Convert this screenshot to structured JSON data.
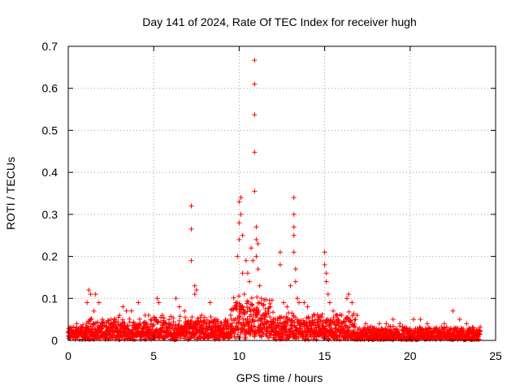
{
  "chart_data": {
    "type": "scatter",
    "title": "Day 141 of 2024, Rate Of TEC Index for receiver hugh",
    "xlabel": "GPS time / hours",
    "ylabel": "ROTI / TECUs",
    "xlim": [
      0,
      25
    ],
    "ylim": [
      0,
      0.7
    ],
    "x_ticks": [
      0,
      5,
      10,
      15,
      20,
      25
    ],
    "x_tick_labels": [
      "0",
      "5",
      "10",
      "15",
      "20",
      "25"
    ],
    "y_ticks": [
      0,
      0.1,
      0.2,
      0.3,
      0.4,
      0.5,
      0.6,
      0.7
    ],
    "y_tick_labels": [
      "0",
      "0.1",
      "0.2",
      "0.3",
      "0.4",
      "0.5",
      "0.6",
      "0.7"
    ],
    "grid": true,
    "marker": "+",
    "color": "#ff0000",
    "series": [
      {
        "name": "ROTI",
        "points": [
          [
            0.2,
            0.03
          ],
          [
            0.5,
            0.04
          ],
          [
            0.8,
            0.03
          ],
          [
            1.1,
            0.09
          ],
          [
            1.2,
            0.12
          ],
          [
            1.3,
            0.11
          ],
          [
            1.5,
            0.07
          ],
          [
            1.6,
            0.11
          ],
          [
            1.8,
            0.09
          ],
          [
            2.0,
            0.05
          ],
          [
            2.5,
            0.05
          ],
          [
            3.0,
            0.06
          ],
          [
            3.2,
            0.08
          ],
          [
            3.4,
            0.07
          ],
          [
            3.7,
            0.07
          ],
          [
            4.1,
            0.09
          ],
          [
            4.5,
            0.06
          ],
          [
            4.7,
            0.06
          ],
          [
            5.2,
            0.1
          ],
          [
            5.3,
            0.09
          ],
          [
            5.5,
            0.06
          ],
          [
            6.3,
            0.1
          ],
          [
            6.5,
            0.08
          ],
          [
            6.8,
            0.07
          ],
          [
            7.2,
            0.32
          ],
          [
            7.2,
            0.265
          ],
          [
            7.2,
            0.19
          ],
          [
            7.4,
            0.13
          ],
          [
            7.4,
            0.11
          ],
          [
            7.5,
            0.12
          ],
          [
            7.8,
            0.06
          ],
          [
            8.3,
            0.09
          ],
          [
            8.6,
            0.05
          ],
          [
            9.2,
            0.05
          ],
          [
            9.5,
            0.06
          ],
          [
            9.8,
            0.09
          ],
          [
            9.9,
            0.2
          ],
          [
            10.0,
            0.24
          ],
          [
            10.0,
            0.28
          ],
          [
            10.0,
            0.33
          ],
          [
            10.1,
            0.34
          ],
          [
            10.1,
            0.3
          ],
          [
            10.2,
            0.25
          ],
          [
            10.2,
            0.16
          ],
          [
            10.3,
            0.11
          ],
          [
            10.4,
            0.19
          ],
          [
            10.5,
            0.16
          ],
          [
            10.6,
            0.14
          ],
          [
            10.7,
            0.22
          ],
          [
            10.8,
            0.19
          ],
          [
            10.9,
            0.667
          ],
          [
            10.9,
            0.61
          ],
          [
            10.9,
            0.537
          ],
          [
            10.9,
            0.448
          ],
          [
            10.9,
            0.355
          ],
          [
            11.0,
            0.27
          ],
          [
            11.0,
            0.24
          ],
          [
            11.0,
            0.2
          ],
          [
            11.1,
            0.23
          ],
          [
            11.1,
            0.17
          ],
          [
            11.2,
            0.13
          ],
          [
            11.3,
            0.1
          ],
          [
            11.6,
            0.06
          ],
          [
            12.0,
            0.05
          ],
          [
            12.4,
            0.21
          ],
          [
            12.4,
            0.18
          ],
          [
            12.6,
            0.09
          ],
          [
            12.8,
            0.08
          ],
          [
            13.0,
            0.13
          ],
          [
            13.2,
            0.34
          ],
          [
            13.2,
            0.3
          ],
          [
            13.2,
            0.27
          ],
          [
            13.2,
            0.25
          ],
          [
            13.2,
            0.21
          ],
          [
            13.3,
            0.17
          ],
          [
            13.3,
            0.14
          ],
          [
            13.4,
            0.1
          ],
          [
            13.5,
            0.09
          ],
          [
            13.8,
            0.09
          ],
          [
            14.0,
            0.08
          ],
          [
            14.4,
            0.06
          ],
          [
            14.7,
            0.05
          ],
          [
            15.0,
            0.21
          ],
          [
            15.0,
            0.18
          ],
          [
            15.1,
            0.16
          ],
          [
            15.1,
            0.14
          ],
          [
            15.2,
            0.11
          ],
          [
            15.3,
            0.09
          ],
          [
            15.5,
            0.07
          ],
          [
            15.7,
            0.06
          ],
          [
            16.0,
            0.06
          ],
          [
            16.3,
            0.1
          ],
          [
            16.4,
            0.11
          ],
          [
            16.6,
            0.09
          ],
          [
            16.9,
            0.06
          ],
          [
            17.4,
            0.04
          ],
          [
            17.8,
            0.03
          ],
          [
            18.2,
            0.04
          ],
          [
            18.6,
            0.04
          ],
          [
            19.0,
            0.05
          ],
          [
            19.4,
            0.04
          ],
          [
            19.8,
            0.03
          ],
          [
            20.2,
            0.05
          ],
          [
            20.6,
            0.05
          ],
          [
            21.0,
            0.04
          ],
          [
            21.5,
            0.03
          ],
          [
            22.0,
            0.04
          ],
          [
            22.5,
            0.07
          ],
          [
            22.9,
            0.05
          ],
          [
            23.3,
            0.04
          ],
          [
            23.7,
            0.03
          ],
          [
            24.0,
            0.02
          ]
        ],
        "dense_band": {
          "comment": "Dense low-level background of ROTI values across the day",
          "x_start": 0,
          "x_end": 24.1,
          "x_step": 0.02,
          "baseline_segments": [
            {
              "x": [
                0,
                1
              ],
              "base": 0.02,
              "spread": 0.02
            },
            {
              "x": [
                1,
                5
              ],
              "base": 0.02,
              "spread": 0.035
            },
            {
              "x": [
                5,
                9.5
              ],
              "base": 0.02,
              "spread": 0.04
            },
            {
              "x": [
                9.5,
                12
              ],
              "base": 0.03,
              "spread": 0.08
            },
            {
              "x": [
                12,
                16.8
              ],
              "base": 0.02,
              "spread": 0.05
            },
            {
              "x": [
                16.8,
                24.1
              ],
              "base": 0.01,
              "spread": 0.025
            }
          ]
        }
      }
    ]
  }
}
